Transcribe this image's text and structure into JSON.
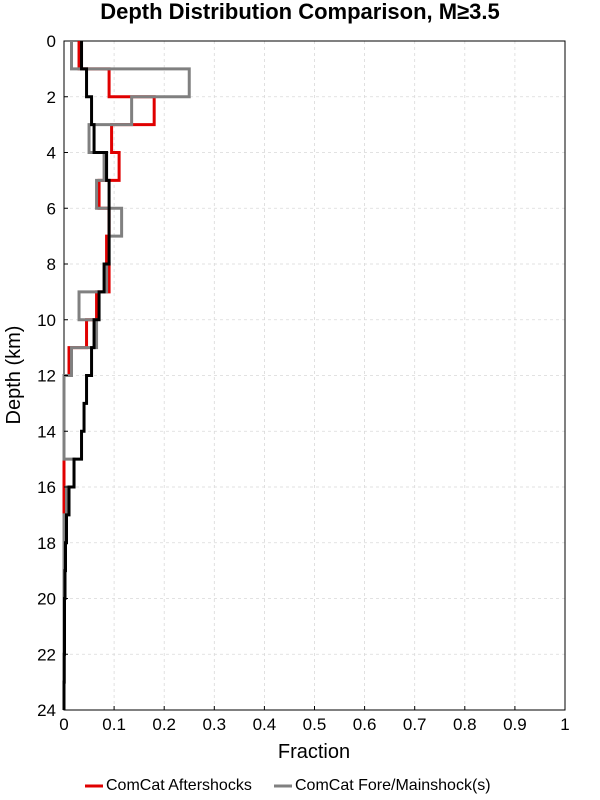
{
  "chart_data": {
    "type": "line",
    "title": "Depth Distribution Comparison, M≥3.5",
    "xlabel": "Fraction",
    "ylabel": "Depth (km)",
    "xlim": [
      0,
      1
    ],
    "ylim": [
      0,
      24
    ],
    "y_inverted": true,
    "grid": true,
    "legend_position": "bottom",
    "x_ticks": [
      "0",
      "0.1",
      "0.2",
      "0.3",
      "0.4",
      "0.5",
      "0.6",
      "0.7",
      "0.8",
      "0.9",
      "1"
    ],
    "y_ticks": [
      "0",
      "2",
      "4",
      "6",
      "8",
      "10",
      "12",
      "14",
      "16",
      "18",
      "20",
      "22",
      "24"
    ],
    "bin_edges": [
      0,
      1,
      2,
      3,
      4,
      5,
      6,
      7,
      8,
      9,
      10,
      11,
      12,
      13,
      14,
      15,
      16,
      17,
      18,
      19,
      20,
      21,
      22,
      23,
      24
    ],
    "series": [
      {
        "name": "ComCat Aftershocks",
        "color": "#e00000",
        "legend_visible": true,
        "values": [
          0.03,
          0.09,
          0.18,
          0.095,
          0.11,
          0.07,
          0.09,
          0.085,
          0.09,
          0.065,
          0.045,
          0.01,
          0.0,
          0.0,
          0.0,
          0.0,
          0.0,
          0.0,
          0.0,
          0.0,
          0.0,
          0.0,
          0.0,
          0.0
        ]
      },
      {
        "name": "ComCat Fore/Mainshock(s)",
        "color": "#808080",
        "legend_visible": true,
        "values": [
          0.015,
          0.25,
          0.135,
          0.05,
          0.08,
          0.065,
          0.115,
          0.09,
          0.085,
          0.03,
          0.065,
          0.015,
          0.0,
          0.0,
          0.0,
          0.02,
          0.005,
          0.0,
          0.0,
          0.0,
          0.0,
          0.0,
          0.0,
          0.0
        ]
      },
      {
        "name": "",
        "color": "#000000",
        "legend_visible": false,
        "values": [
          0.035,
          0.045,
          0.055,
          0.06,
          0.085,
          0.09,
          0.09,
          0.09,
          0.08,
          0.07,
          0.06,
          0.055,
          0.045,
          0.04,
          0.035,
          0.02,
          0.01,
          0.005,
          0.003,
          0.002,
          0.001,
          0.001,
          0.0005,
          0.0
        ]
      }
    ]
  }
}
